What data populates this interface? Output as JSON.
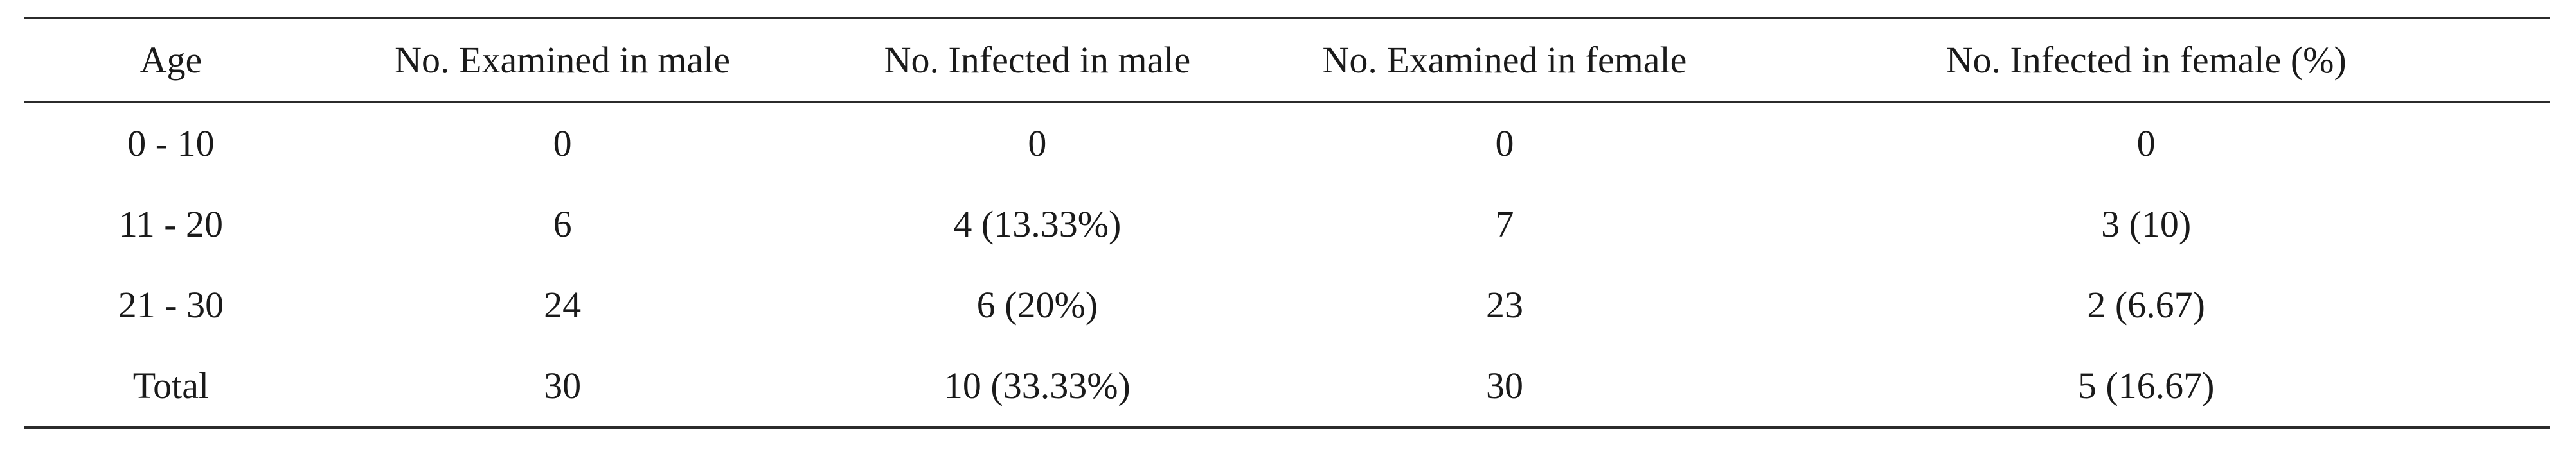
{
  "table": {
    "headers": [
      "Age",
      "No. Examined in male",
      "No. Infected in male",
      "No. Examined in female",
      "No. Infected in female (%)"
    ],
    "rows": [
      [
        "0 - 10",
        "0",
        "0",
        "0",
        "0"
      ],
      [
        "11 - 20",
        "6",
        "4 (13.33%)",
        "7",
        "3 (10)"
      ],
      [
        "21 - 30",
        "24",
        "6 (20%)",
        "23",
        "2 (6.67)"
      ],
      [
        "Total",
        "30",
        "10 (33.33%)",
        "30",
        "5 (16.67)"
      ]
    ]
  }
}
